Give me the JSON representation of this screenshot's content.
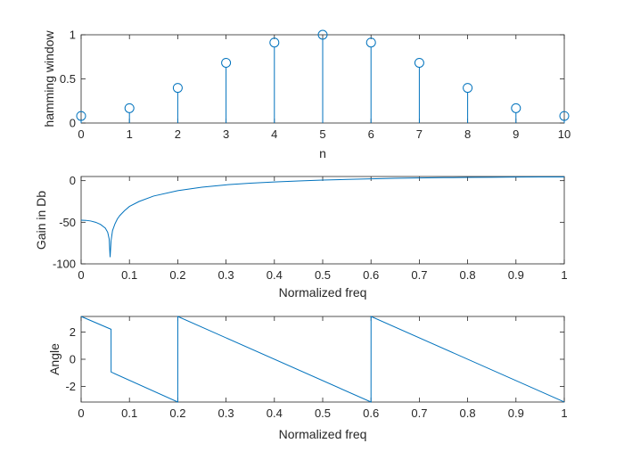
{
  "chart_data": [
    {
      "type": "stem",
      "xlabel": "n",
      "ylabel": "hamming window",
      "xlim": [
        0,
        10
      ],
      "ylim": [
        0,
        1
      ],
      "xticks": [
        0,
        1,
        2,
        3,
        4,
        5,
        6,
        7,
        8,
        9,
        10
      ],
      "yticks": [
        0,
        0.5,
        1
      ],
      "color": "#0072BD",
      "x": [
        0,
        1,
        2,
        3,
        4,
        5,
        6,
        7,
        8,
        9,
        10
      ],
      "y": [
        0.08,
        0.168,
        0.398,
        0.682,
        0.912,
        1.0,
        0.912,
        0.682,
        0.398,
        0.168,
        0.08
      ]
    },
    {
      "type": "line",
      "xlabel": "Normalized freq",
      "ylabel": "Gain in Db",
      "xlim": [
        0,
        1
      ],
      "ylim": [
        -100,
        5
      ],
      "xticks": [
        0,
        0.1,
        0.2,
        0.3,
        0.4,
        0.5,
        0.6,
        0.7,
        0.8,
        0.9,
        1
      ],
      "yticks": [
        -100,
        -50,
        0
      ],
      "color": "#0072BD",
      "x": [
        0,
        0.01,
        0.02,
        0.03,
        0.04,
        0.05,
        0.055,
        0.058,
        0.06,
        0.062,
        0.065,
        0.07,
        0.075,
        0.08,
        0.09,
        0.1,
        0.12,
        0.15,
        0.2,
        0.25,
        0.3,
        0.35,
        0.4,
        0.45,
        0.5,
        0.55,
        0.6,
        0.65,
        0.7,
        0.75,
        0.8,
        0.85,
        0.9,
        0.95,
        1.0
      ],
      "y": [
        -47.5,
        -47.7,
        -48.5,
        -50,
        -52.5,
        -57,
        -62,
        -70,
        -92,
        -72,
        -60,
        -52,
        -46,
        -42,
        -36,
        -31,
        -25,
        -18.5,
        -12,
        -7.8,
        -5,
        -3,
        -1.5,
        -0.3,
        0.7,
        1.5,
        2.2,
        2.8,
        3.2,
        3.6,
        3.9,
        4.1,
        4.3,
        4.4,
        4.5
      ]
    },
    {
      "type": "line",
      "xlabel": "Normalized freq",
      "ylabel": "Angle",
      "xlim": [
        0,
        1
      ],
      "ylim": [
        -3.1416,
        3.1416
      ],
      "xticks": [
        0,
        0.1,
        0.2,
        0.3,
        0.4,
        0.5,
        0.6,
        0.7,
        0.8,
        0.9,
        1
      ],
      "yticks": [
        -2,
        0,
        2
      ],
      "color": "#0072BD",
      "x": [
        0,
        0.062,
        0.0621,
        0.2,
        0.2001,
        0.6,
        0.6001,
        1.0
      ],
      "y": [
        3.14,
        2.2,
        -0.94,
        -3.14,
        3.14,
        -3.14,
        3.14,
        -3.14
      ]
    }
  ]
}
